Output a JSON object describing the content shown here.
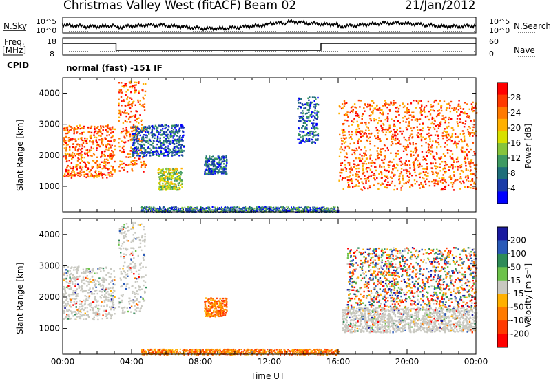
{
  "header": {
    "title": "Christmas Valley West (fitACF)",
    "beam": "Beam 02",
    "date": "21/Jan/2012"
  },
  "panels": {
    "nsky_label": "N.Sky",
    "nsky_ticks": [
      "10^5",
      "10^0"
    ],
    "nsearch_label": "N.Search",
    "nsearch_ticks": [
      "10^5",
      "10^0"
    ],
    "freq_label": "Freq.",
    "freq_unit": "[MHz]",
    "freq_ticks": [
      "18",
      "8"
    ],
    "nave_label": "Nave",
    "nave_ticks": [
      "60",
      "0"
    ],
    "cpid_label": "CPID",
    "cpid_text": "normal (fast) -151 IF"
  },
  "chart_data": [
    {
      "type": "heatmap",
      "name": "power-panel",
      "xlabel": "",
      "ylabel": "Slant Range [km]",
      "x_ticks": [
        "00:00",
        "04:00",
        "08:00",
        "12:00",
        "16:00",
        "20:00",
        "00:00"
      ],
      "xlim_hours": [
        0,
        24
      ],
      "ylim": [
        180,
        4500
      ],
      "y_ticks": [
        1000,
        2000,
        3000,
        4000
      ],
      "colorbar": {
        "label": "Power [dB]",
        "ticks": [
          "28",
          "24",
          "20",
          "16",
          "12",
          "8",
          "4"
        ],
        "colors": [
          "#ff0000",
          "#ff3a00",
          "#ff7a00",
          "#ffb000",
          "#d8e000",
          "#86c43c",
          "#3e9a62",
          "#1f6e7a",
          "#1b3ca8",
          "#0000ff"
        ]
      },
      "regions": [
        {
          "t": [
            0.0,
            3.0
          ],
          "r": [
            1300,
            3000
          ],
          "level": "high"
        },
        {
          "t": [
            3.2,
            4.8
          ],
          "r": [
            1500,
            4400
          ],
          "level": "high"
        },
        {
          "t": [
            4.0,
            7.0
          ],
          "r": [
            2000,
            3000
          ],
          "level": "low"
        },
        {
          "t": [
            5.5,
            6.9
          ],
          "r": [
            900,
            1600
          ],
          "level": "mid"
        },
        {
          "t": [
            8.2,
            9.5
          ],
          "r": [
            1400,
            2000
          ],
          "level": "low"
        },
        {
          "t": [
            13.6,
            14.8
          ],
          "r": [
            2400,
            3900
          ],
          "level": "low"
        },
        {
          "t": [
            16.0,
            24.0
          ],
          "r": [
            900,
            3800
          ],
          "level": "high"
        }
      ]
    },
    {
      "type": "heatmap",
      "name": "velocity-panel",
      "xlabel": "Time UT",
      "ylabel": "Slant Range [km]",
      "x_ticks": [
        "00:00",
        "04:00",
        "08:00",
        "12:00",
        "16:00",
        "20:00",
        "00:00"
      ],
      "xlim_hours": [
        0,
        24
      ],
      "ylim": [
        180,
        4500
      ],
      "y_ticks": [
        1000,
        2000,
        3000,
        4000
      ],
      "colorbar": {
        "label": "Velocity [m s⁻¹]",
        "ticks": [
          "200",
          "100",
          "50",
          "15",
          "-15",
          "-50",
          "-100",
          "-200"
        ],
        "colors": [
          "#1a1aa0",
          "#2a5ab8",
          "#2e8b57",
          "#6cc24a",
          "#c8c8c0",
          "#ffb000",
          "#ff7a00",
          "#ff3a00",
          "#ff0000"
        ]
      },
      "regions": [
        {
          "t": [
            0.0,
            3.0
          ],
          "r": [
            1300,
            3000
          ],
          "level": "ground"
        },
        {
          "t": [
            3.2,
            4.8
          ],
          "r": [
            1500,
            4400
          ],
          "level": "ground"
        },
        {
          "t": [
            8.2,
            9.5
          ],
          "r": [
            1400,
            2000
          ],
          "level": "negative"
        },
        {
          "t": [
            16.2,
            24.0
          ],
          "r": [
            900,
            1700
          ],
          "level": "ground"
        },
        {
          "t": [
            16.5,
            24.0
          ],
          "r": [
            1700,
            3600
          ],
          "level": "mixed"
        }
      ]
    }
  ]
}
